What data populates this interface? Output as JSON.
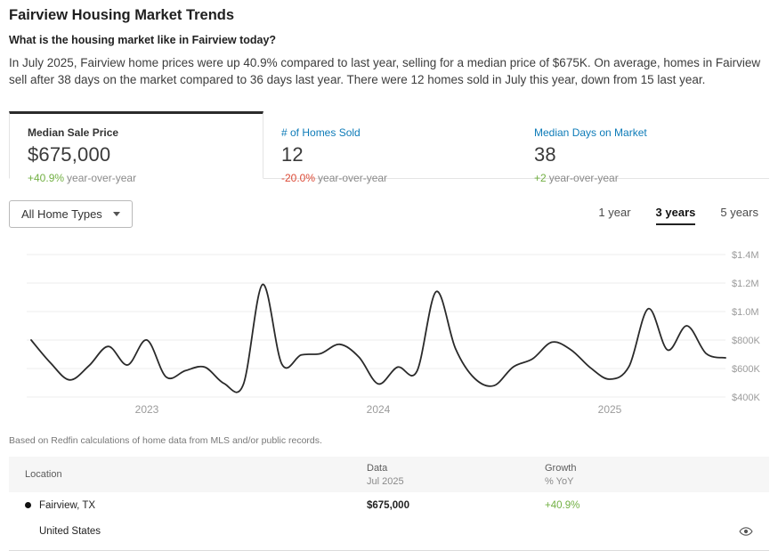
{
  "header": {
    "title": "Fairview Housing Market Trends",
    "subtitle": "What is the housing market like in Fairview today?",
    "summary": "In July 2025, Fairview home prices were up 40.9% compared to last year, selling for a median price of $675K. On average, homes in Fairview sell after 38 days on the market compared to 36 days last year. There were 12 homes sold in July this year, down from 15 last year."
  },
  "metrics": [
    {
      "label": "Median Sale Price",
      "value": "$675,000",
      "change": "+40.9%",
      "direction": "up",
      "suffix": "year-over-year",
      "selected": true
    },
    {
      "label": "# of Homes Sold",
      "value": "12",
      "change": "-20.0%",
      "direction": "down",
      "suffix": "year-over-year",
      "selected": false
    },
    {
      "label": "Median Days on Market",
      "value": "38",
      "change": "+2",
      "direction": "up",
      "suffix": "year-over-year",
      "selected": false
    }
  ],
  "controls": {
    "home_type_filter": "All Home Types",
    "ranges": [
      "1 year",
      "3 years",
      "5 years"
    ],
    "selected_range": "3 years"
  },
  "chart_data": {
    "type": "line",
    "title": "Median Sale Price over 3 years",
    "x": [
      "Jul 2022",
      "Aug 2022",
      "Sep 2022",
      "Oct 2022",
      "Nov 2022",
      "Dec 2022",
      "Jan 2023",
      "Feb 2023",
      "Mar 2023",
      "Apr 2023",
      "May 2023",
      "Jun 2023",
      "Jul 2023",
      "Aug 2023",
      "Sep 2023",
      "Oct 2023",
      "Nov 2023",
      "Dec 2023",
      "Jan 2024",
      "Feb 2024",
      "Mar 2024",
      "Apr 2024",
      "May 2024",
      "Jun 2024",
      "Jul 2024",
      "Aug 2024",
      "Sep 2024",
      "Oct 2024",
      "Nov 2024",
      "Dec 2024",
      "Jan 2025",
      "Feb 2025",
      "Mar 2025",
      "Apr 2025",
      "May 2025",
      "Jun 2025",
      "Jul 2025"
    ],
    "values_usd_thousands": [
      800,
      640,
      520,
      620,
      755,
      625,
      800,
      540,
      585,
      610,
      495,
      487,
      1190,
      630,
      695,
      705,
      770,
      680,
      492,
      610,
      580,
      1140,
      740,
      530,
      480,
      612,
      668,
      785,
      730,
      605,
      525,
      615,
      1020,
      730,
      900,
      705,
      675
    ],
    "ylabel": "",
    "xlabel": "",
    "y_ticks": [
      "$1.4M",
      "$1.2M",
      "$1.0M",
      "$800K",
      "$600K",
      "$400K"
    ],
    "y_tick_values_thousands": [
      1400,
      1200,
      1000,
      800,
      600,
      400
    ],
    "x_year_labels": [
      "2023",
      "2024",
      "2025"
    ],
    "ylim_thousands": [
      400,
      1400
    ],
    "grid": true,
    "legend": "none",
    "line_color": "#2a2a2a",
    "grid_color": "#ececec",
    "axis_label_color": "#9b9b9b"
  },
  "attribution": "Based on Redfin calculations of home data from MLS and/or public records.",
  "table": {
    "columns": [
      {
        "title": "Location",
        "subtitle": ""
      },
      {
        "title": "Data",
        "subtitle": "Jul 2025"
      },
      {
        "title": "Growth",
        "subtitle": "% YoY"
      }
    ],
    "rows": [
      {
        "location": "Fairview, TX",
        "has_marker": true,
        "data": "$675,000",
        "growth": "+40.9%"
      },
      {
        "location": "United States",
        "has_marker": false,
        "data": "",
        "growth": ""
      }
    ]
  },
  "colors": {
    "positive": "#72b043",
    "negative": "#dc4a36",
    "link_blue": "#0d7bb8"
  }
}
